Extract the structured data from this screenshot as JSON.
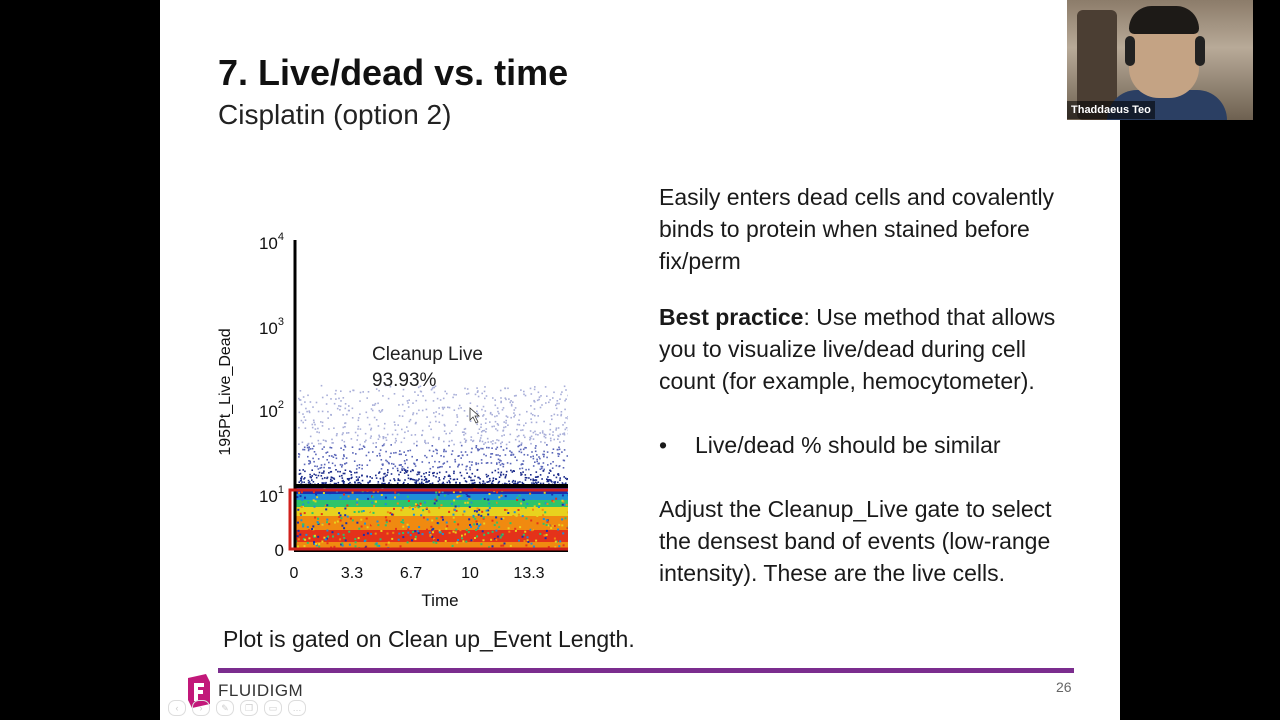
{
  "slide": {
    "title": "7. Live/dead vs. time",
    "subtitle": "Cisplatin (option 2)",
    "paragraph1": "Easily enters dead cells and covalently binds to protein when stained before fix/perm",
    "best_practice_label": "Best practice",
    "best_practice_text": ": Use method that allows you to visualize live/dead during cell count (for example, hemocytometer).",
    "bullet_symbol": "•",
    "bullet_text": "Live/dead % should be similar",
    "paragraph3": "Adjust the Cleanup_Live gate to select the densest band of events (low-range intensity). These are the live cells.",
    "caption": "Plot is gated on Clean up_Event Length.",
    "logo_text": "FLUIDIGM",
    "page_number": "26",
    "brand_color": "#7b2d8e"
  },
  "webcam": {
    "participant_name": "Thaddaeus Teo"
  },
  "chart_data": {
    "type": "scatter",
    "xlabel": "Time",
    "ylabel": "195Pt_Live_Dead",
    "x_ticks": [
      "0",
      "3.3",
      "6.7",
      "10",
      "13.3"
    ],
    "y_ticks": [
      {
        "base": "0",
        "exp": ""
      },
      {
        "base": "10",
        "exp": "1"
      },
      {
        "base": "10",
        "exp": "2"
      },
      {
        "base": "10",
        "exp": "3"
      },
      {
        "base": "10",
        "exp": "4"
      }
    ],
    "gate": {
      "name": "Cleanup Live",
      "percent": "93.93%",
      "color": "#d0211c"
    },
    "y_scale": "log",
    "colormap": [
      "#1a2fb0",
      "#1f8fd8",
      "#2ec46a",
      "#e8d21e",
      "#f08a10",
      "#e4321a"
    ]
  },
  "toolbar": {
    "icons": [
      "back-icon",
      "forward-icon",
      "pen-icon",
      "copy-icon",
      "screen-icon",
      "more-icon"
    ]
  }
}
